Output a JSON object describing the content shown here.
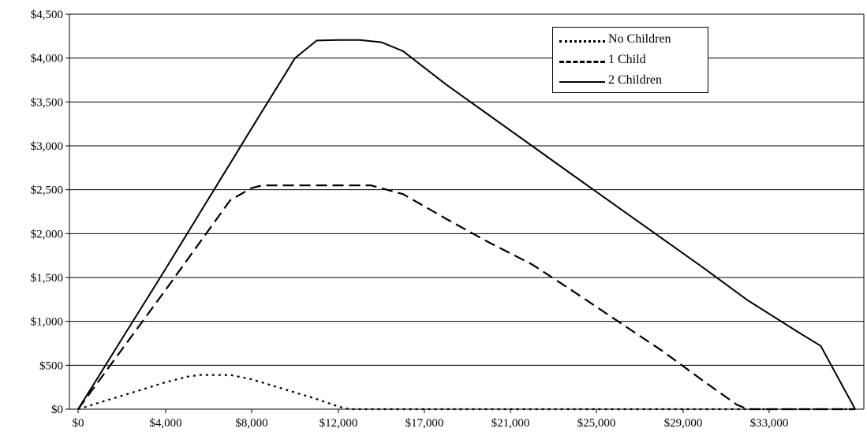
{
  "chart_data": {
    "type": "line",
    "title": "",
    "xlabel": "",
    "ylabel": "",
    "x_tick_labels": [
      "$0",
      "$4,000",
      "$8,000",
      "$12,000",
      "$17,000",
      "$21,000",
      "$25,000",
      "$29,000",
      "$33,000"
    ],
    "y_tick_labels": [
      "$0",
      "$500",
      "$1,000",
      "$1,500",
      "$2,000",
      "$2,500",
      "$3,000",
      "$3,500",
      "$4,000",
      "$4,500"
    ],
    "ylim": [
      0,
      4500
    ],
    "xlim": [
      0,
      35000
    ],
    "grid": "horizontal",
    "legend_position": "top-right",
    "series": [
      {
        "name": "No Children",
        "style": "dotted",
        "color": "#000000",
        "points": [
          [
            0,
            0
          ],
          [
            1000,
            77
          ],
          [
            2000,
            153
          ],
          [
            3000,
            230
          ],
          [
            4000,
            306
          ],
          [
            5000,
            370
          ],
          [
            5600,
            390
          ],
          [
            6500,
            390
          ],
          [
            7000,
            390
          ],
          [
            8000,
            340
          ],
          [
            9000,
            265
          ],
          [
            10000,
            190
          ],
          [
            11000,
            115
          ],
          [
            12000,
            30
          ],
          [
            12500,
            0
          ],
          [
            17000,
            0
          ],
          [
            21000,
            0
          ],
          [
            25000,
            0
          ],
          [
            29000,
            0
          ],
          [
            33000,
            0
          ],
          [
            35000,
            0
          ]
        ]
      },
      {
        "name": "1 Child",
        "style": "dashed",
        "color": "#000000",
        "points": [
          [
            0,
            0
          ],
          [
            1000,
            340
          ],
          [
            2000,
            680
          ],
          [
            3000,
            1020
          ],
          [
            4000,
            1360
          ],
          [
            5000,
            1700
          ],
          [
            6000,
            2040
          ],
          [
            7000,
            2380
          ],
          [
            8000,
            2520
          ],
          [
            8500,
            2550
          ],
          [
            10000,
            2550
          ],
          [
            12000,
            2550
          ],
          [
            13500,
            2550
          ],
          [
            15000,
            2450
          ],
          [
            17000,
            2170
          ],
          [
            19000,
            1900
          ],
          [
            21000,
            1650
          ],
          [
            23000,
            1330
          ],
          [
            25000,
            1000
          ],
          [
            27000,
            670
          ],
          [
            29000,
            310
          ],
          [
            30500,
            50
          ],
          [
            31000,
            0
          ],
          [
            33000,
            0
          ],
          [
            35000,
            0
          ]
        ]
      },
      {
        "name": "2 Children",
        "style": "solid",
        "color": "#000000",
        "points": [
          [
            0,
            0
          ],
          [
            1000,
            400
          ],
          [
            2000,
            800
          ],
          [
            3000,
            1200
          ],
          [
            4000,
            1600
          ],
          [
            5000,
            2000
          ],
          [
            6000,
            2400
          ],
          [
            7000,
            2800
          ],
          [
            8000,
            3200
          ],
          [
            9000,
            3600
          ],
          [
            10000,
            4000
          ],
          [
            11000,
            4200
          ],
          [
            12000,
            4205
          ],
          [
            13000,
            4205
          ],
          [
            14000,
            4180
          ],
          [
            15000,
            4080
          ],
          [
            17000,
            3700
          ],
          [
            19000,
            3350
          ],
          [
            21000,
            3000
          ],
          [
            23000,
            2650
          ],
          [
            25000,
            2300
          ],
          [
            27000,
            1950
          ],
          [
            29000,
            1600
          ],
          [
            31000,
            1240
          ],
          [
            33000,
            880
          ],
          [
            33800,
            720
          ],
          [
            34500,
            300
          ],
          [
            35000,
            0
          ]
        ]
      }
    ]
  }
}
